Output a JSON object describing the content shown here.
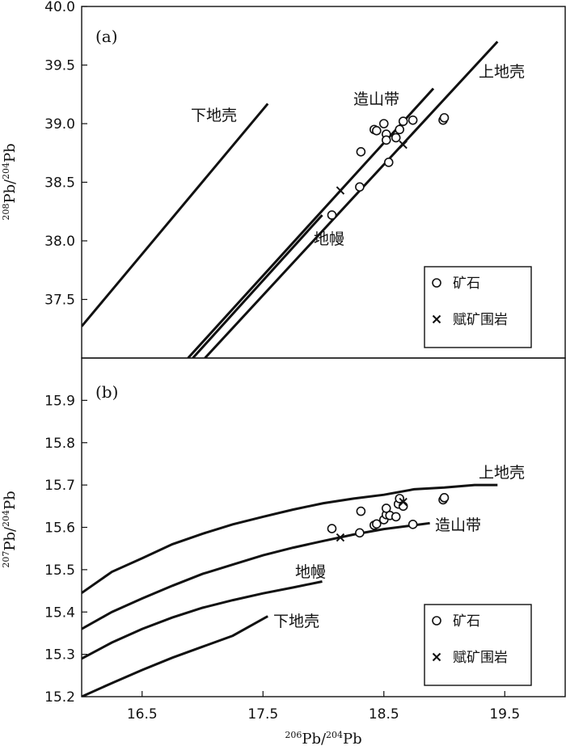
{
  "chart_data": [
    {
      "panel": "(a)",
      "type": "scatter",
      "xlim": [
        16.0,
        20.0
      ],
      "ylim": [
        37.0,
        40.0
      ],
      "yticks": [
        "37.5",
        "38.0",
        "38.5",
        "39.0",
        "39.5",
        "40.0"
      ],
      "ytick_values": [
        37.5,
        38.0,
        38.5,
        39.0,
        39.5,
        40.0
      ],
      "ylabel": {
        "sup1": "208",
        "base1": "Pb/",
        "sup2": "204",
        "base2": "Pb"
      },
      "curves": [
        {
          "name": "下地壳",
          "points": [
            [
              16.0,
              37.27
            ],
            [
              17.54,
              39.17
            ]
          ]
        },
        {
          "name": "造山带",
          "points": [
            [
              16.88,
              37.0
            ],
            [
              18.91,
              39.3
            ]
          ]
        },
        {
          "name": "地幔",
          "points": [
            [
              16.92,
              37.0
            ],
            [
              17.99,
              38.22
            ]
          ]
        },
        {
          "name": "上地壳",
          "points": [
            [
              17.02,
              37.0
            ],
            [
              19.44,
              39.7
            ]
          ]
        }
      ],
      "series": [
        {
          "name": "矿石",
          "marker": "circle",
          "points": [
            [
              18.07,
              38.22
            ],
            [
              18.3,
              38.46
            ],
            [
              18.31,
              38.76
            ],
            [
              18.42,
              38.95
            ],
            [
              18.44,
              38.94
            ],
            [
              18.5,
              39.0
            ],
            [
              18.52,
              38.91
            ],
            [
              18.52,
              38.86
            ],
            [
              18.54,
              38.67
            ],
            [
              18.6,
              38.88
            ],
            [
              18.63,
              38.95
            ],
            [
              18.66,
              39.02
            ],
            [
              18.74,
              39.03
            ],
            [
              18.99,
              39.03
            ],
            [
              19.0,
              39.05
            ]
          ]
        },
        {
          "name": "赋矿围岩",
          "marker": "cross",
          "points": [
            [
              18.14,
              38.43
            ],
            [
              18.66,
              38.82
            ]
          ]
        }
      ]
    },
    {
      "panel": "(b)",
      "type": "scatter",
      "xlim": [
        16.0,
        20.0
      ],
      "ylim": [
        15.2,
        16.0
      ],
      "xticks": [
        "16.5",
        "17.5",
        "18.5",
        "19.5"
      ],
      "xtick_values": [
        16.5,
        17.5,
        18.5,
        19.5
      ],
      "yticks": [
        "15.2",
        "15.3",
        "15.4",
        "15.5",
        "15.6",
        "15.7",
        "15.8",
        "15.9"
      ],
      "ytick_values": [
        15.2,
        15.3,
        15.4,
        15.5,
        15.6,
        15.7,
        15.8,
        15.9
      ],
      "xlabel": {
        "sup1": "206",
        "base1": "Pb/",
        "sup2": "204",
        "base2": "Pb"
      },
      "ylabel": {
        "sup1": "207",
        "base1": "Pb/",
        "sup2": "204",
        "base2": "Pb"
      },
      "curves": [
        {
          "name": "上地壳",
          "points": [
            [
              16.0,
              15.445
            ],
            [
              16.25,
              15.495
            ],
            [
              16.5,
              15.527
            ],
            [
              16.75,
              15.56
            ],
            [
              17.0,
              15.585
            ],
            [
              17.25,
              15.607
            ],
            [
              17.5,
              15.625
            ],
            [
              17.75,
              15.642
            ],
            [
              18.0,
              15.657
            ],
            [
              18.25,
              15.668
            ],
            [
              18.5,
              15.677
            ],
            [
              18.75,
              15.69
            ],
            [
              19.0,
              15.694
            ],
            [
              19.25,
              15.7
            ],
            [
              19.44,
              15.7
            ]
          ]
        },
        {
          "name": "造山带",
          "points": [
            [
              16.0,
              15.36
            ],
            [
              16.25,
              15.4
            ],
            [
              16.5,
              15.432
            ],
            [
              16.75,
              15.462
            ],
            [
              17.0,
              15.49
            ],
            [
              17.25,
              15.512
            ],
            [
              17.5,
              15.534
            ],
            [
              17.75,
              15.552
            ],
            [
              18.0,
              15.568
            ],
            [
              18.25,
              15.583
            ],
            [
              18.5,
              15.596
            ],
            [
              18.75,
              15.605
            ],
            [
              18.88,
              15.61
            ]
          ]
        },
        {
          "name": "地幔",
          "points": [
            [
              16.0,
              15.29
            ],
            [
              16.25,
              15.328
            ],
            [
              16.5,
              15.36
            ],
            [
              16.75,
              15.387
            ],
            [
              17.0,
              15.41
            ],
            [
              17.25,
              15.428
            ],
            [
              17.5,
              15.444
            ],
            [
              17.75,
              15.458
            ],
            [
              17.99,
              15.472
            ]
          ]
        },
        {
          "name": "下地壳",
          "points": [
            [
              16.0,
              15.2
            ],
            [
              16.25,
              15.232
            ],
            [
              16.5,
              15.263
            ],
            [
              16.75,
              15.292
            ],
            [
              17.0,
              15.318
            ],
            [
              17.25,
              15.344
            ],
            [
              17.54,
              15.39
            ]
          ]
        }
      ],
      "series": [
        {
          "name": "矿石",
          "marker": "circle",
          "points": [
            [
              18.07,
              15.597
            ],
            [
              18.3,
              15.587
            ],
            [
              18.31,
              15.638
            ],
            [
              18.42,
              15.605
            ],
            [
              18.44,
              15.608
            ],
            [
              18.5,
              15.618
            ],
            [
              18.52,
              15.63
            ],
            [
              18.52,
              15.645
            ],
            [
              18.55,
              15.628
            ],
            [
              18.6,
              15.625
            ],
            [
              18.62,
              15.655
            ],
            [
              18.63,
              15.668
            ],
            [
              18.66,
              15.65
            ],
            [
              18.74,
              15.607
            ],
            [
              18.99,
              15.665
            ],
            [
              19.0,
              15.67
            ]
          ]
        },
        {
          "name": "赋矿围岩",
          "marker": "cross",
          "points": [
            [
              18.14,
              15.576
            ],
            [
              18.66,
              15.66
            ]
          ]
        }
      ]
    }
  ]
}
